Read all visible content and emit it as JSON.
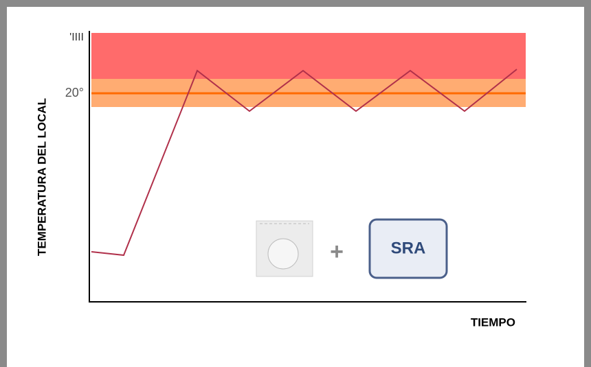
{
  "labels": {
    "top_tick": "'IIII",
    "ref_tick": "20°",
    "y_axis": "TEMPERATURA DEL LOCAL",
    "x_axis": "TIEMPO",
    "plus": "+",
    "device": "SRA"
  }
}
